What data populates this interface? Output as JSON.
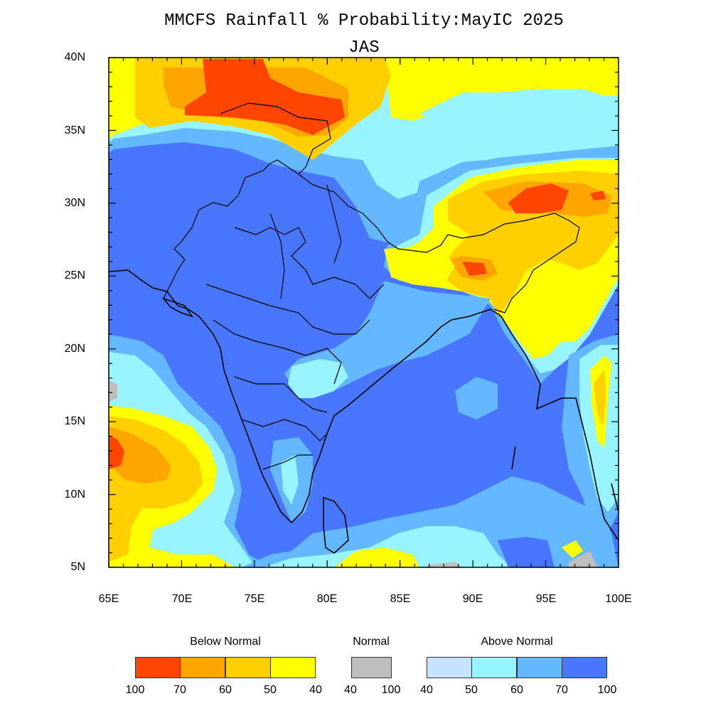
{
  "title": "MMCFS Rainfall % Probability:MayIC 2025",
  "subtitle": "JAS",
  "axes": {
    "x_ticks": [
      "65E",
      "70E",
      "75E",
      "80E",
      "85E",
      "90E",
      "95E",
      "100E"
    ],
    "y_ticks": [
      "40N",
      "35N",
      "30N",
      "25N",
      "20N",
      "15N",
      "10N",
      "5N"
    ]
  },
  "colors": {
    "below_100_70": "#ff4500",
    "below_70_60": "#ffa500",
    "below_60_50": "#ffd000",
    "below_50_40": "#ffff00",
    "normal": "#bebebe",
    "above_40_50": "#c6e2ff",
    "above_50_60": "#98f5ff",
    "above_60_70": "#63b8ff",
    "above_70_100": "#4876ff"
  },
  "legend": {
    "below": {
      "label": "Below Normal",
      "ticks": [
        "100",
        "70",
        "60",
        "50",
        "40"
      ],
      "colors": [
        "#ff4500",
        "#ffa500",
        "#ffd000",
        "#ffff00"
      ]
    },
    "normal": {
      "label": "Normal",
      "ticks": [
        "40",
        "100"
      ],
      "colors": [
        "#bebebe"
      ]
    },
    "above": {
      "label": "Above Normal",
      "ticks": [
        "40",
        "50",
        "60",
        "70",
        "100"
      ],
      "colors": [
        "#c6e2ff",
        "#98f5ff",
        "#63b8ff",
        "#4876ff"
      ]
    }
  }
}
